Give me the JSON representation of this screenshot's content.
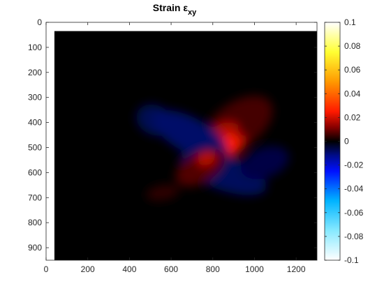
{
  "chart_data": {
    "type": "heatmap",
    "title": "Strain",
    "title_symbol": "ε",
    "title_subscript": "xy",
    "xlabel": "",
    "ylabel": "",
    "xlim": [
      0,
      1300
    ],
    "ylim": [
      950,
      0
    ],
    "x_ticks": [
      0,
      200,
      400,
      600,
      800,
      1000,
      1200
    ],
    "y_ticks": [
      0,
      100,
      200,
      300,
      400,
      500,
      600,
      700,
      800,
      900
    ],
    "image_extent": {
      "x": [
        40,
        1300
      ],
      "y": [
        35,
        950
      ]
    },
    "background_value": 0,
    "colorbar": {
      "limits": [
        -0.1,
        0.1
      ],
      "ticks": [
        0.1,
        0.08,
        0.06,
        0.04,
        0.02,
        0,
        -0.02,
        -0.04,
        -0.06,
        -0.08,
        -0.1
      ],
      "tick_labels": [
        "0.1",
        "0.08",
        "0.06",
        "0.04",
        "0.02",
        "0",
        "-0.02",
        "-0.04",
        "-0.06",
        "-0.08",
        "-0.1"
      ],
      "colormap": [
        {
          "value": -0.1,
          "color": "#ffffff"
        },
        {
          "value": -0.075,
          "color": "#87e9ff"
        },
        {
          "value": -0.05,
          "color": "#00b3ff"
        },
        {
          "value": -0.025,
          "color": "#0010ff"
        },
        {
          "value": -0.012,
          "color": "#000c8a"
        },
        {
          "value": 0,
          "color": "#000000"
        },
        {
          "value": 0.012,
          "color": "#8a0000"
        },
        {
          "value": 0.025,
          "color": "#ff1a00"
        },
        {
          "value": 0.05,
          "color": "#ff9900"
        },
        {
          "value": 0.075,
          "color": "#ffff33"
        },
        {
          "value": 0.1,
          "color": "#ffffff"
        }
      ]
    },
    "regions": [
      {
        "x": 920,
        "y": 410,
        "rx": 190,
        "ry": 90,
        "rotate": -35,
        "value": 0.006
      },
      {
        "x": 870,
        "y": 470,
        "rx": 90,
        "ry": 70,
        "rotate": -30,
        "value": 0.016
      },
      {
        "x": 880,
        "y": 485,
        "rx": 45,
        "ry": 35,
        "rotate": -25,
        "value": 0.026
      },
      {
        "x": 990,
        "y": 400,
        "rx": 80,
        "ry": 40,
        "rotate": -40,
        "value": 0.006
      },
      {
        "x": 520,
        "y": 390,
        "rx": 90,
        "ry": 60,
        "rotate": 25,
        "value": -0.007
      },
      {
        "x": 690,
        "y": 450,
        "rx": 200,
        "ry": 70,
        "rotate": 28,
        "value": -0.009
      },
      {
        "x": 850,
        "y": 600,
        "rx": 220,
        "ry": 70,
        "rotate": 20,
        "value": -0.008
      },
      {
        "x": 1050,
        "y": 560,
        "rx": 120,
        "ry": 60,
        "rotate": -20,
        "value": -0.006
      },
      {
        "x": 740,
        "y": 580,
        "rx": 130,
        "ry": 60,
        "rotate": -30,
        "value": 0.007
      },
      {
        "x": 770,
        "y": 545,
        "rx": 45,
        "ry": 25,
        "rotate": -20,
        "value": 0.018
      },
      {
        "x": 560,
        "y": 680,
        "rx": 80,
        "ry": 30,
        "rotate": -10,
        "value": 0.004
      }
    ]
  }
}
